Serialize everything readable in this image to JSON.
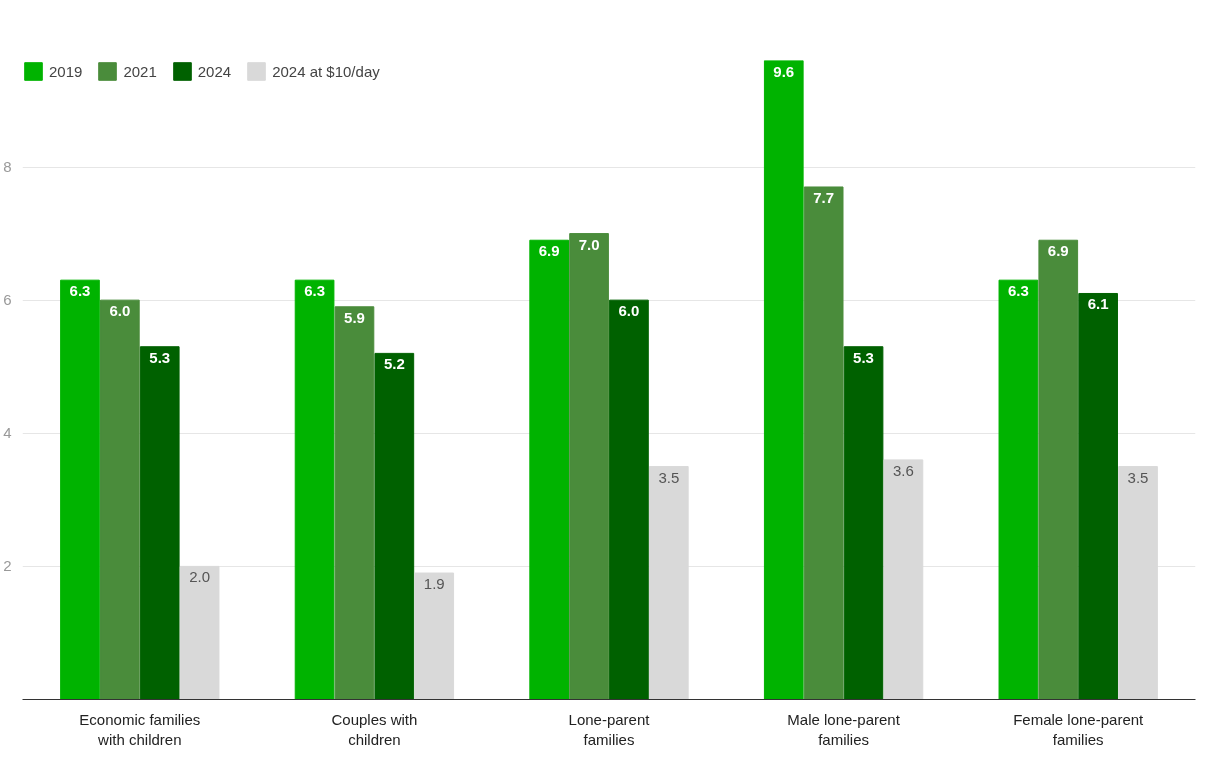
{
  "chart_data": {
    "type": "bar",
    "categories": [
      "Economic families with children",
      "Couples with children",
      "Lone-parent families",
      "Male lone-parent families",
      "Female lone-parent families"
    ],
    "series": [
      {
        "name": "2019",
        "color": "#00b300",
        "values": [
          6.3,
          6.3,
          6.9,
          9.6,
          6.3
        ],
        "value_labels": [
          "6.3",
          "6.3",
          "6.9",
          "9.6",
          "6.3"
        ]
      },
      {
        "name": "2021",
        "color": "#4a8c3b",
        "values": [
          6.0,
          5.9,
          7.0,
          7.7,
          6.9
        ],
        "value_labels": [
          "6.0",
          "5.9",
          "7.0",
          "7.7",
          "6.9"
        ]
      },
      {
        "name": "2024",
        "color": "#006100",
        "values": [
          5.3,
          5.2,
          6.0,
          5.3,
          6.1
        ],
        "value_labels": [
          "5.3",
          "5.2",
          "6.0",
          "5.3",
          "6.1"
        ]
      },
      {
        "name": "2024 at $10/day",
        "color": "#d9d9d9",
        "values": [
          2.0,
          1.9,
          3.5,
          3.6,
          3.5
        ],
        "value_labels": [
          "2.0",
          "1.9",
          "3.5",
          "3.6",
          "3.5"
        ]
      }
    ],
    "ylim": [
      0,
      9.6
    ],
    "yticks": [
      2,
      4,
      6,
      8
    ],
    "grid": "y",
    "legend": "top left"
  }
}
